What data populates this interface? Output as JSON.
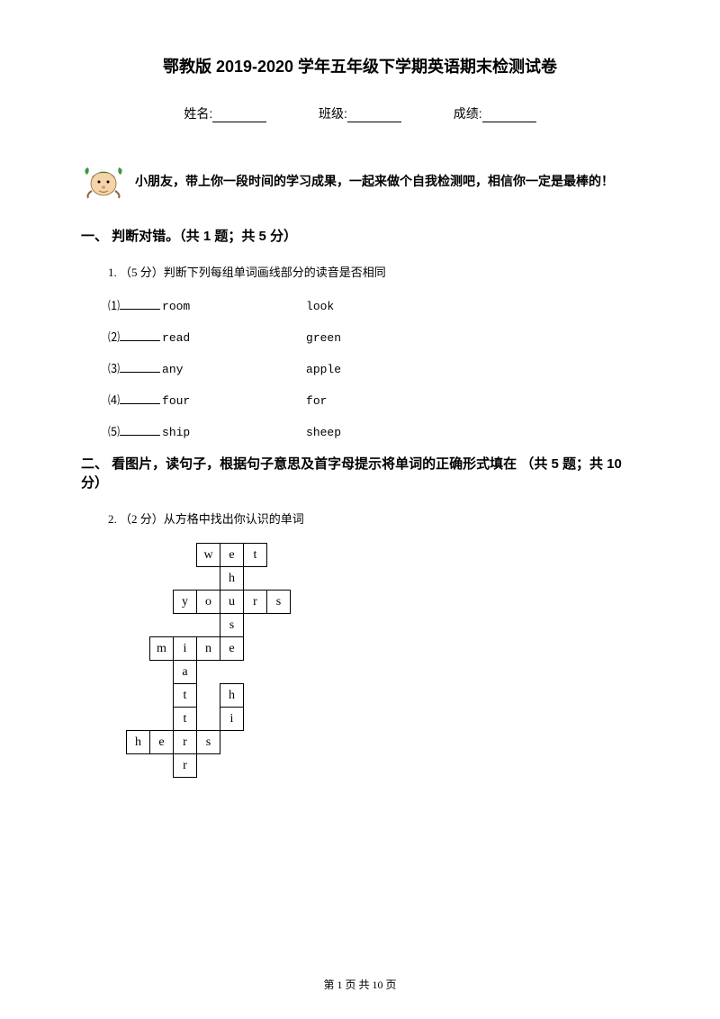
{
  "title": "鄂教版 2019-2020 学年五年级下学期英语期末检测试卷",
  "info": {
    "name_label": "姓名:",
    "class_label": "班级:",
    "score_label": "成绩:"
  },
  "intro": "小朋友，带上你一段时间的学习成果，一起来做个自我检测吧，相信你一定是最棒的！",
  "section1": {
    "header": "一、 判断对错。（共 1 题；共 5 分）",
    "q1": "1. （5 分）判断下列每组单词画线部分的读音是否相同",
    "items": [
      {
        "num": "⑴",
        "w1": "room",
        "w2": "look"
      },
      {
        "num": "⑵",
        "w1": "read",
        "w2": "green"
      },
      {
        "num": "⑶",
        "w1": " any",
        "w2": "apple"
      },
      {
        "num": "⑷",
        "w1": "four",
        "w2": "for"
      },
      {
        "num": "⑸",
        "w1": " ship",
        "w2": "sheep"
      }
    ]
  },
  "section2": {
    "header": "二、 看图片，读句子，根据句子意思及首字母提示将单词的正确形式填在 （共 5 题；共 10 分）",
    "q2": "2. （2 分）从方格中找出你认识的单词"
  },
  "crossword": {
    "grid": [
      [
        "",
        "",
        "",
        "w",
        "e",
        "t",
        "",
        ""
      ],
      [
        "",
        "",
        "",
        "",
        "h",
        "",
        "",
        ""
      ],
      [
        "",
        "",
        "y",
        "o",
        "u",
        "r",
        "s",
        ""
      ],
      [
        "",
        "",
        "",
        "",
        "s",
        "",
        "",
        ""
      ],
      [
        "",
        "m",
        "i",
        "n",
        "e",
        "",
        "",
        ""
      ],
      [
        "",
        "",
        "a",
        "",
        "",
        "",
        "",
        ""
      ],
      [
        "",
        "",
        "t",
        "",
        "h",
        "",
        "",
        ""
      ],
      [
        "",
        "",
        "t",
        "",
        "i",
        "",
        "",
        ""
      ],
      [
        "h",
        "e",
        "r",
        "s",
        "",
        "",
        "",
        ""
      ],
      [
        "",
        "",
        "r",
        "",
        "",
        "",
        "",
        ""
      ]
    ],
    "cells": [
      [
        0,
        0,
        0,
        1,
        1,
        1,
        0,
        0
      ],
      [
        0,
        0,
        0,
        0,
        1,
        0,
        0,
        0
      ],
      [
        0,
        0,
        1,
        1,
        1,
        1,
        1,
        0
      ],
      [
        0,
        0,
        0,
        0,
        1,
        0,
        0,
        0
      ],
      [
        0,
        1,
        1,
        1,
        1,
        0,
        0,
        0
      ],
      [
        0,
        0,
        1,
        0,
        0,
        0,
        0,
        0
      ],
      [
        0,
        0,
        1,
        0,
        1,
        0,
        0,
        0
      ],
      [
        0,
        0,
        1,
        0,
        1,
        0,
        0,
        0
      ],
      [
        1,
        1,
        1,
        1,
        0,
        0,
        0,
        0
      ],
      [
        0,
        0,
        1,
        0,
        0,
        0,
        0,
        0
      ]
    ]
  },
  "footer": "第 1 页 共 10 页",
  "colors": {
    "text": "#000000",
    "bg": "#ffffff",
    "mascot_skin": "#f4d4a8",
    "mascot_hat": "#2a7a2a",
    "mascot_leaf": "#3a9a3a"
  }
}
